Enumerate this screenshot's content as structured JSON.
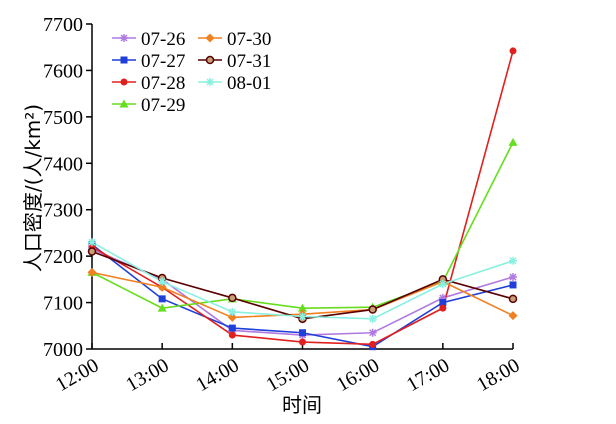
{
  "chart_data": {
    "type": "line",
    "xlabel": "时间",
    "ylabel": "人口密度/(人/km²)",
    "categories": [
      "12:00",
      "13:00",
      "14:00",
      "15:00",
      "16:00",
      "17:00",
      "18:00"
    ],
    "ylim": [
      7000,
      7700
    ],
    "yticks": [
      7000,
      7100,
      7200,
      7300,
      7400,
      7500,
      7600,
      7700
    ],
    "grid": false,
    "legend_position": "top-left",
    "series": [
      {
        "name": "07-26",
        "color": "#b07ae0",
        "marker": "star",
        "values": [
          7215,
          7150,
          7040,
          7030,
          7035,
          7110,
          7155
        ]
      },
      {
        "name": "07-27",
        "color": "#1f3fd8",
        "marker": "square",
        "values": [
          7225,
          7108,
          7045,
          7035,
          7005,
          7100,
          7138
        ]
      },
      {
        "name": "07-28",
        "color": "#e0201e",
        "marker": "circle",
        "values": [
          7220,
          7133,
          7030,
          7015,
          7010,
          7088,
          7642
        ]
      },
      {
        "name": "07-29",
        "color": "#66dd1e",
        "marker": "triangle",
        "values": [
          7165,
          7088,
          7108,
          7088,
          7090,
          7145,
          7445
        ]
      },
      {
        "name": "07-30",
        "color": "#f08020",
        "marker": "diamond",
        "values": [
          7165,
          7133,
          7068,
          7075,
          7085,
          7145,
          7072
        ]
      },
      {
        "name": "07-31",
        "color": "#5a0000",
        "marker": "circle-open",
        "values": [
          7210,
          7153,
          7110,
          7065,
          7085,
          7150,
          7108
        ]
      },
      {
        "name": "08-01",
        "color": "#8af0e0",
        "marker": "star",
        "values": [
          7230,
          7145,
          7080,
          7070,
          7065,
          7140,
          7190
        ]
      }
    ]
  }
}
